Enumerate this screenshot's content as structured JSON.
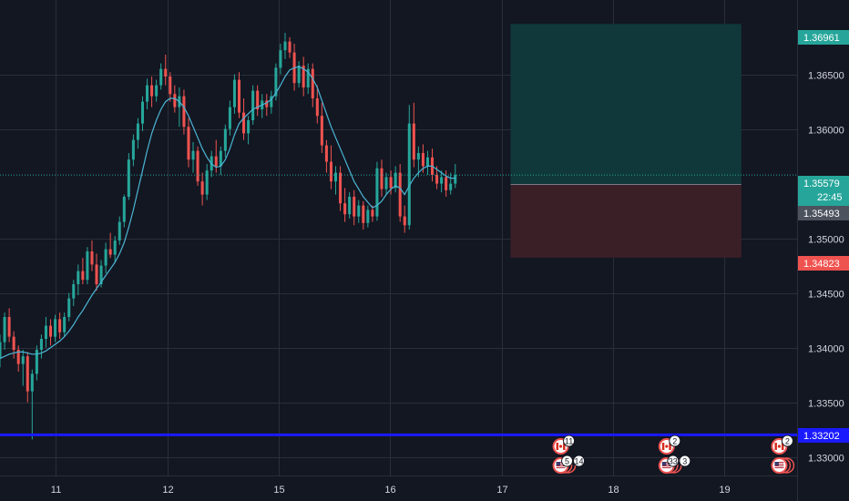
{
  "chart_data": {
    "type": "candlestick",
    "x_axis": {
      "ticks": [
        {
          "label": "11",
          "x": 11
        },
        {
          "label": "12",
          "x": 12
        },
        {
          "label": "15",
          "x": 13
        },
        {
          "label": "16",
          "x": 14
        },
        {
          "label": "17",
          "x": 15
        },
        {
          "label": "18",
          "x": 16
        },
        {
          "label": "19",
          "x": 17
        }
      ],
      "range": [
        10.5,
        17.65
      ]
    },
    "y_axis": {
      "ticks": [
        "1.36500",
        "1.36000",
        "1.35000",
        "1.34500",
        "1.34000",
        "1.33500",
        "1.33000"
      ],
      "tick_values": [
        1.365,
        1.36,
        1.35,
        1.345,
        1.34,
        1.335,
        1.33
      ],
      "range": [
        1.3283,
        1.3718
      ]
    },
    "price_labels": {
      "target": "1.36961",
      "current": "1.35579",
      "countdown": "22:45",
      "entry": "1.35493",
      "stop": "1.34823",
      "support": "1.33202"
    },
    "levels": {
      "target": 1.36961,
      "current": 1.35579,
      "entry": 1.35493,
      "stop": 1.34823,
      "support": 1.33202
    },
    "position": {
      "x_start": 15.08,
      "x_end": 17.15
    },
    "candle_series": {
      "x_start": 10.5,
      "x_step": 0.04125,
      "ohlc": [
        [
          1.3391,
          1.3412,
          1.3382,
          1.3405
        ],
        [
          1.3405,
          1.3432,
          1.3398,
          1.3428
        ],
        [
          1.3428,
          1.3436,
          1.3405,
          1.341
        ],
        [
          1.341,
          1.3415,
          1.339,
          1.3398
        ],
        [
          1.3398,
          1.3402,
          1.3378,
          1.3385
        ],
        [
          1.3385,
          1.3398,
          1.3365,
          1.3392
        ],
        [
          1.3392,
          1.3396,
          1.335,
          1.336
        ],
        [
          1.336,
          1.338,
          1.3316,
          1.3376
        ],
        [
          1.3376,
          1.3402,
          1.337,
          1.3398
        ],
        [
          1.3398,
          1.3412,
          1.339,
          1.3408
        ],
        [
          1.3408,
          1.3428,
          1.34,
          1.342
        ],
        [
          1.342,
          1.3426,
          1.3402,
          1.341
        ],
        [
          1.341,
          1.343,
          1.3405,
          1.3426
        ],
        [
          1.3426,
          1.3432,
          1.3408,
          1.3414
        ],
        [
          1.3414,
          1.3432,
          1.341,
          1.3428
        ],
        [
          1.3428,
          1.345,
          1.3424,
          1.3445
        ],
        [
          1.3445,
          1.3462,
          1.3438,
          1.3458
        ],
        [
          1.3458,
          1.3476,
          1.3448,
          1.347
        ],
        [
          1.347,
          1.3482,
          1.3458,
          1.3462
        ],
        [
          1.3462,
          1.3492,
          1.3458,
          1.3488
        ],
        [
          1.3488,
          1.3498,
          1.347,
          1.3476
        ],
        [
          1.3476,
          1.3486,
          1.3452,
          1.3458
        ],
        [
          1.3458,
          1.348,
          1.3455,
          1.3475
        ],
        [
          1.3475,
          1.3496,
          1.3468,
          1.349
        ],
        [
          1.349,
          1.3505,
          1.3482,
          1.3485
        ],
        [
          1.3485,
          1.3502,
          1.3478,
          1.3498
        ],
        [
          1.3498,
          1.352,
          1.3494,
          1.3515
        ],
        [
          1.3515,
          1.354,
          1.351,
          1.3538
        ],
        [
          1.3538,
          1.3578,
          1.3535,
          1.3572
        ],
        [
          1.3572,
          1.3595,
          1.3566,
          1.359
        ],
        [
          1.359,
          1.361,
          1.3582,
          1.3605
        ],
        [
          1.3605,
          1.363,
          1.3598,
          1.3625
        ],
        [
          1.3625,
          1.3646,
          1.3618,
          1.364
        ],
        [
          1.364,
          1.3648,
          1.362,
          1.363
        ],
        [
          1.363,
          1.3645,
          1.3625,
          1.364
        ],
        [
          1.364,
          1.366,
          1.3636,
          1.3655
        ],
        [
          1.3655,
          1.3668,
          1.364,
          1.3648
        ],
        [
          1.3648,
          1.3652,
          1.3625,
          1.3632
        ],
        [
          1.3632,
          1.364,
          1.3615,
          1.362
        ],
        [
          1.362,
          1.3638,
          1.3602,
          1.363
        ],
        [
          1.363,
          1.3636,
          1.3595,
          1.3602
        ],
        [
          1.3602,
          1.361,
          1.3565,
          1.3572
        ],
        [
          1.3572,
          1.3588,
          1.356,
          1.358
        ],
        [
          1.358,
          1.3584,
          1.3548,
          1.3552
        ],
        [
          1.3552,
          1.356,
          1.353,
          1.354
        ],
        [
          1.354,
          1.3568,
          1.3535,
          1.3562
        ],
        [
          1.3562,
          1.358,
          1.3556,
          1.3575
        ],
        [
          1.3575,
          1.359,
          1.356,
          1.3566
        ],
        [
          1.3566,
          1.3584,
          1.3558,
          1.358
        ],
        [
          1.358,
          1.3604,
          1.3574,
          1.36
        ],
        [
          1.36,
          1.3626,
          1.3594,
          1.362
        ],
        [
          1.362,
          1.365,
          1.3614,
          1.3645
        ],
        [
          1.3645,
          1.3652,
          1.361,
          1.3615
        ],
        [
          1.3615,
          1.3628,
          1.359,
          1.3596
        ],
        [
          1.3596,
          1.3612,
          1.3586,
          1.3608
        ],
        [
          1.3608,
          1.364,
          1.3604,
          1.3635
        ],
        [
          1.3635,
          1.364,
          1.3612,
          1.3618
        ],
        [
          1.3618,
          1.3632,
          1.361,
          1.3626
        ],
        [
          1.3626,
          1.3632,
          1.3612,
          1.362
        ],
        [
          1.362,
          1.3635,
          1.3614,
          1.363
        ],
        [
          1.363,
          1.366,
          1.3626,
          1.3656
        ],
        [
          1.3656,
          1.3678,
          1.365,
          1.3672
        ],
        [
          1.3672,
          1.3688,
          1.3664,
          1.368
        ],
        [
          1.368,
          1.3684,
          1.3665,
          1.367
        ],
        [
          1.367,
          1.3678,
          1.3635,
          1.3642
        ],
        [
          1.3642,
          1.3662,
          1.3638,
          1.3658
        ],
        [
          1.3658,
          1.3666,
          1.363,
          1.3638
        ],
        [
          1.3638,
          1.366,
          1.3632,
          1.3655
        ],
        [
          1.3655,
          1.366,
          1.362,
          1.3628
        ],
        [
          1.3628,
          1.364,
          1.3605,
          1.3612
        ],
        [
          1.3612,
          1.3624,
          1.3578,
          1.3585
        ],
        [
          1.3585,
          1.359,
          1.356,
          1.357
        ],
        [
          1.357,
          1.3585,
          1.3545,
          1.3552
        ],
        [
          1.3552,
          1.3566,
          1.354,
          1.356
        ],
        [
          1.356,
          1.3566,
          1.3525,
          1.3532
        ],
        [
          1.3532,
          1.3546,
          1.3515,
          1.3522
        ],
        [
          1.3522,
          1.3542,
          1.3518,
          1.3538
        ],
        [
          1.3538,
          1.3544,
          1.3512,
          1.352
        ],
        [
          1.352,
          1.3535,
          1.3514,
          1.353
        ],
        [
          1.353,
          1.3534,
          1.3508,
          1.3514
        ],
        [
          1.3514,
          1.353,
          1.351,
          1.3526
        ],
        [
          1.3526,
          1.353,
          1.3515,
          1.352
        ],
        [
          1.352,
          1.357,
          1.3516,
          1.3564
        ],
        [
          1.3564,
          1.3572,
          1.3538,
          1.3545
        ],
        [
          1.3545,
          1.356,
          1.354,
          1.3556
        ],
        [
          1.3556,
          1.3562,
          1.354,
          1.3546
        ],
        [
          1.3546,
          1.3566,
          1.3542,
          1.356
        ],
        [
          1.356,
          1.3568,
          1.3515,
          1.352
        ],
        [
          1.352,
          1.353,
          1.3505,
          1.3512
        ],
        [
          1.3512,
          1.3622,
          1.3508,
          1.3605
        ],
        [
          1.3605,
          1.3624,
          1.3565,
          1.3572
        ],
        [
          1.3572,
          1.3584,
          1.3556,
          1.3578
        ],
        [
          1.3578,
          1.3586,
          1.356,
          1.3566
        ],
        [
          1.3566,
          1.358,
          1.3558,
          1.3574
        ],
        [
          1.3574,
          1.3582,
          1.3552,
          1.3558
        ],
        [
          1.3558,
          1.3566,
          1.3545,
          1.355
        ],
        [
          1.355,
          1.3562,
          1.3542,
          1.3556
        ],
        [
          1.3556,
          1.3562,
          1.3538,
          1.3544
        ],
        [
          1.3544,
          1.356,
          1.354,
          1.355
        ],
        [
          1.355,
          1.3568,
          1.3546,
          1.3558
        ]
      ],
      "ma": [
        1.339,
        1.3392,
        1.3394,
        1.3395,
        1.3396,
        1.3396,
        1.3395,
        1.3394,
        1.3394,
        1.3395,
        1.3397,
        1.34,
        1.3403,
        1.3406,
        1.341,
        1.3415,
        1.3421,
        1.3428,
        1.3434,
        1.3441,
        1.3448,
        1.3454,
        1.346,
        1.3466,
        1.3472,
        1.3478,
        1.3486,
        1.3496,
        1.351,
        1.3526,
        1.3544,
        1.3562,
        1.358,
        1.3596,
        1.3608,
        1.3618,
        1.3625,
        1.3628,
        1.3628,
        1.3625,
        1.362,
        1.3612,
        1.3602,
        1.3592,
        1.3582,
        1.3574,
        1.3568,
        1.3565,
        1.3566,
        1.3572,
        1.3582,
        1.3595,
        1.3605,
        1.361,
        1.3614,
        1.3618,
        1.362,
        1.3622,
        1.3624,
        1.3627,
        1.3633,
        1.364,
        1.3648,
        1.3654,
        1.3656,
        1.3657,
        1.3655,
        1.3652,
        1.3646,
        1.3638,
        1.3626,
        1.3614,
        1.3602,
        1.3592,
        1.3582,
        1.3572,
        1.3562,
        1.3552,
        1.3545,
        1.3538,
        1.3533,
        1.3528,
        1.353,
        1.3534,
        1.354,
        1.3545,
        1.3548,
        1.3546,
        1.354,
        1.3548,
        1.3555,
        1.356,
        1.3564,
        1.3566,
        1.3566,
        1.3563,
        1.356,
        1.3557,
        1.3555,
        1.3555
      ]
    },
    "events": [
      {
        "x": 15.53,
        "row": "top",
        "flag": "ca",
        "count": "11"
      },
      {
        "x": 15.53,
        "row": "bottom",
        "flag": "us",
        "counts": [
          "5",
          "14"
        ]
      },
      {
        "x": 16.48,
        "row": "top",
        "flag": "ca",
        "count": "2"
      },
      {
        "x": 16.48,
        "row": "bottom",
        "flag": "us",
        "counts": [
          "33",
          "3"
        ]
      },
      {
        "x": 17.49,
        "row": "top",
        "flag": "ca",
        "count": "2"
      },
      {
        "x": 17.49,
        "row": "bottom",
        "flag": "us"
      }
    ],
    "colors": {
      "background": "#131722",
      "grid": "#2a2e39",
      "up": "#26a69a",
      "down": "#ef5350",
      "ma": "#4bb6d6",
      "support": "#1a1aff",
      "target_zone": "#103a3c",
      "stop_zone": "#3c2027",
      "text": "#d1d4dc"
    }
  }
}
